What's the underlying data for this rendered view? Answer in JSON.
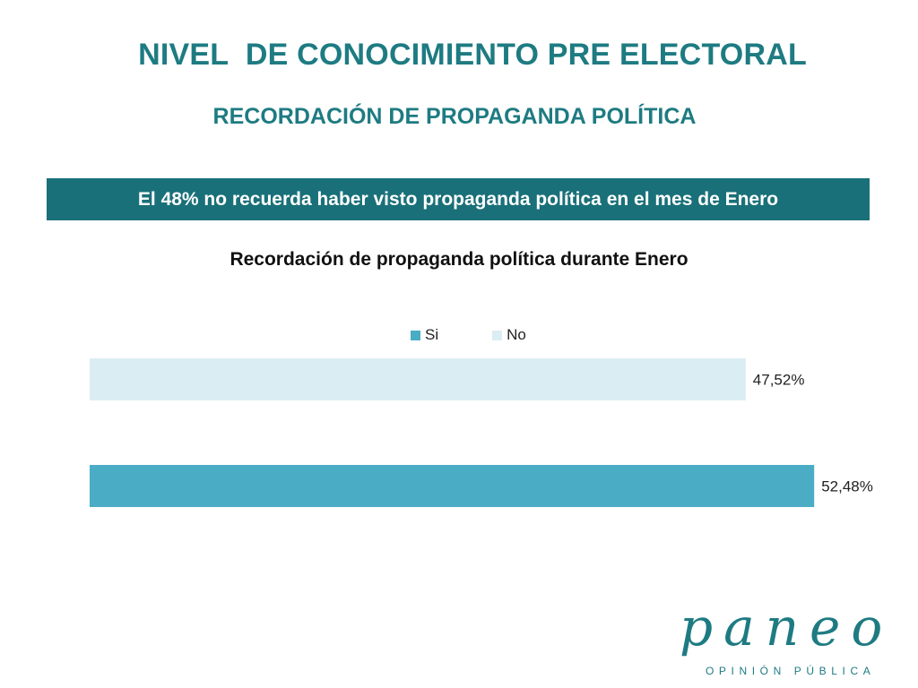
{
  "header": {
    "title": "NIVEL  DE CONOCIMIENTO PRE ELECTORAL",
    "subtitle": "RECORDACIÓN DE PROPAGANDA POLÍTICA"
  },
  "banner": {
    "text": "El 48% no recuerda haber visto propaganda política en el mes de Enero"
  },
  "chart_data": {
    "type": "bar",
    "orientation": "horizontal",
    "title": "Recordación de propaganda política durante Enero",
    "xlabel": "",
    "ylabel": "",
    "xlim": [
      0,
      55
    ],
    "grid": false,
    "legend_position": "top",
    "series": [
      {
        "name": "No",
        "value": 47.52,
        "label": "47,52%",
        "color": "#daedf2"
      },
      {
        "name": "Si",
        "value": 52.48,
        "label": "52,48%",
        "color": "#4aacc5"
      }
    ],
    "legend": [
      {
        "name": "Si",
        "color": "#4aacc5"
      },
      {
        "name": "No",
        "color": "#daedf2"
      }
    ]
  },
  "logo": {
    "word": "paneo",
    "tagline": "OPINIÓN PÚBLICA"
  },
  "colors": {
    "brand": "#1e7b82",
    "banner": "#197079"
  }
}
